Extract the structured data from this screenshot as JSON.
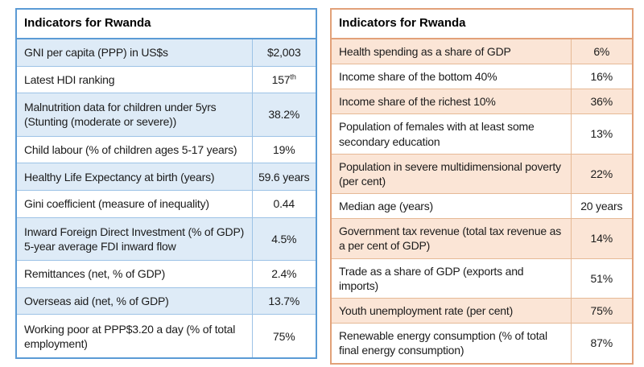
{
  "left_table": {
    "title": "Indicators for Rwanda",
    "theme": {
      "outer_border": "#5b9bd5",
      "inner_border": "#9dc3e6",
      "row_fill": "#deebf7"
    },
    "rows": [
      {
        "label": "GNI per capita (PPP) in US$s",
        "value": "$2,003",
        "shaded": true
      },
      {
        "label": "Latest HDI ranking",
        "value": "157",
        "value_sup": "th",
        "shaded": false
      },
      {
        "label": "Malnutrition data for children under 5yrs (Stunting (moderate or severe))",
        "value": "38.2%",
        "shaded": true
      },
      {
        "label": "Child labour (% of children ages 5-17 years)",
        "value": "19%",
        "shaded": false
      },
      {
        "label": "Healthy Life Expectancy at birth (years)",
        "value": "59.6 years",
        "shaded": true
      },
      {
        "label": "Gini coefficient (measure of inequality)",
        "value": "0.44",
        "shaded": false
      },
      {
        "label": "Inward Foreign Direct Investment (% of GDP) 5-year average FDI inward flow",
        "value": "4.5%",
        "shaded": true
      },
      {
        "label": "Remittances (net, % of GDP)",
        "value": "2.4%",
        "shaded": false
      },
      {
        "label": "Overseas aid (net, % of GDP)",
        "value": "13.7%",
        "shaded": true
      },
      {
        "label": "Working poor at PPP$3.20 a day (% of total employment)",
        "value": "75%",
        "shaded": false
      }
    ]
  },
  "right_table": {
    "title": "Indicators for Rwanda",
    "theme": {
      "outer_border": "#e2a179",
      "inner_border": "#e6b996",
      "row_fill": "#fbe5d6"
    },
    "rows": [
      {
        "label": "Health spending as a share of GDP",
        "value": "6%",
        "shaded": true
      },
      {
        "label": "Income share of the bottom 40%",
        "value": "16%",
        "shaded": false
      },
      {
        "label": "Income share of the richest 10%",
        "value": "36%",
        "shaded": true
      },
      {
        "label": "Population of females with at least some secondary education",
        "value": "13%",
        "shaded": false
      },
      {
        "label": "Population in severe multidimensional poverty (per cent)",
        "value": "22%",
        "shaded": true
      },
      {
        "label": "Median age (years)",
        "value": "20 years",
        "shaded": false
      },
      {
        "label": "Government tax revenue (total tax revenue as a per cent of GDP)",
        "value": "14%",
        "shaded": true
      },
      {
        "label": "Trade as a share of GDP (exports and imports)",
        "value": "51%",
        "shaded": false
      },
      {
        "label": "Youth unemployment rate (per cent)",
        "value": "75%",
        "shaded": true
      },
      {
        "label": "Renewable energy consumption (% of total final energy consumption)",
        "value": "87%",
        "shaded": false
      }
    ]
  }
}
